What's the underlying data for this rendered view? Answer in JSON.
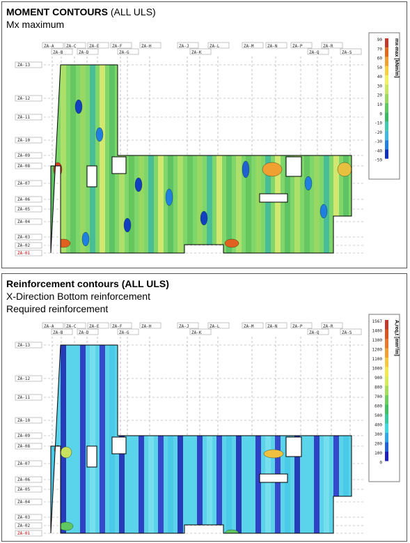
{
  "panel1": {
    "title_bold": "MOMENT CONTOURS",
    "title_rest": " (ALL ULS)",
    "subtitle": "Mx maximum",
    "legend_title": "mx-max [kNm/m]",
    "legend_values": [
      "90",
      "70",
      "60",
      "50",
      "40",
      "30",
      "20",
      "10",
      "0",
      "-10",
      "-20",
      "-30",
      "-40",
      "-59"
    ],
    "legend_colors": [
      "#c0392b",
      "#e2691a",
      "#f0a030",
      "#f6d040",
      "#f0f060",
      "#c8e860",
      "#9ad860",
      "#60c860",
      "#38b860",
      "#40c8b0",
      "#40b8e0",
      "#2080e0",
      "#1030c0"
    ]
  },
  "panel2": {
    "title_bold": "Reinforcement contours (ALL ULS)",
    "subtitle1": "X-Direction Bottom reinforcement",
    "subtitle2": "Required reinforcement",
    "legend_title": "A,req,t [mm²/m]",
    "legend_values": [
      "1567",
      "1400",
      "1300",
      "1200",
      "1100",
      "1000",
      "900",
      "800",
      "700",
      "600",
      "500",
      "400",
      "300",
      "200",
      "100",
      "0"
    ],
    "legend_colors": [
      "#c0392b",
      "#d9541e",
      "#e8782a",
      "#f2a033",
      "#f6c840",
      "#f4e850",
      "#d6ec5a",
      "#a6de5a",
      "#6cd060",
      "#40c060",
      "#38c8a0",
      "#40d8e0",
      "#30a8e8",
      "#2060d8",
      "#2020c0"
    ]
  },
  "grid": {
    "top_row1": [
      "ZA-A",
      "ZA-C",
      "ZA-E",
      "ZA-F",
      "ZA-H",
      "ZA-J",
      "ZA-L",
      "ZA-M",
      "ZA-N",
      "ZA-P",
      "ZA-R"
    ],
    "top_row2": [
      "ZA-B",
      "ZA-D",
      "ZA-G",
      "ZA-K",
      "ZA-Q",
      "ZA-S"
    ],
    "left": [
      "ZA-13",
      "ZA-12",
      "ZA-11",
      "ZA-10",
      "ZA-09",
      "ZA-08",
      "ZA-07",
      "ZA-06",
      "ZA-05",
      "ZA-04",
      "ZA-03",
      "ZA-02",
      "ZA-01"
    ]
  }
}
